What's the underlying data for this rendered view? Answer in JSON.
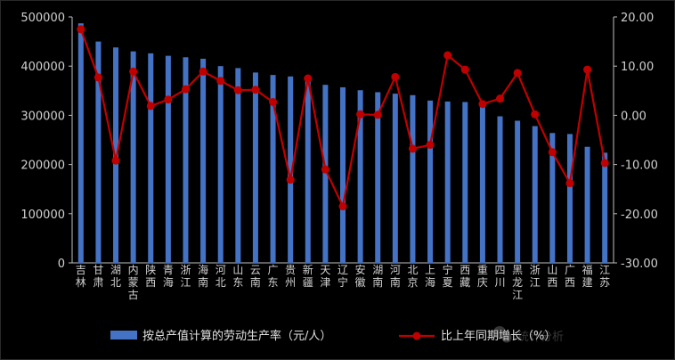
{
  "chart_data": {
    "type": "bar+line",
    "categories": [
      "吉林",
      "甘肃",
      "湖北",
      "内蒙古",
      "陕西",
      "青海",
      "浙江",
      "海南",
      "河北",
      "山东",
      "云南",
      "广东",
      "贵州",
      "新疆",
      "天津",
      "辽宁",
      "安徽",
      "湖南",
      "河南",
      "北京",
      "上海",
      "宁夏",
      "西藏",
      "重庆",
      "四川",
      "黑龙江",
      "浙江",
      "山西",
      "广西",
      "福建",
      "江苏"
    ],
    "series": [
      {
        "name": "按总产值计算的劳动生产率（元/人）",
        "type": "bar",
        "axis": "left",
        "color": "#4472c4",
        "values": [
          487000,
          450000,
          438000,
          430000,
          426000,
          421000,
          418000,
          415000,
          400000,
          396000,
          387000,
          382000,
          379000,
          378000,
          362000,
          357000,
          351000,
          347000,
          344000,
          341000,
          330000,
          328000,
          327000,
          323000,
          298000,
          289000,
          278000,
          264000,
          262000,
          236000,
          224000
        ]
      },
      {
        "name": "比上年同期增长（%）",
        "type": "line",
        "axis": "right",
        "color": "#c00000",
        "values": [
          17.5,
          7.7,
          -9.2,
          8.9,
          1.9,
          3.2,
          5.3,
          8.9,
          7.0,
          5.1,
          5.2,
          2.7,
          -13.1,
          7.5,
          -11.0,
          -18.5,
          0.2,
          0.1,
          7.8,
          -6.8,
          -6.0,
          12.2,
          9.3,
          2.3,
          3.4,
          8.6,
          0.2,
          -7.5,
          -13.8,
          9.3,
          -9.7
        ]
      }
    ],
    "left_axis": {
      "ylim": [
        0,
        500000
      ],
      "ticks": [
        "0",
        "100000",
        "200000",
        "300000",
        "400000",
        "500000"
      ]
    },
    "right_axis": {
      "ylim": [
        -30,
        20
      ],
      "ticks": [
        "-30.00",
        "-20.00",
        "-10.00",
        "0.00",
        "10.00",
        "20.00"
      ]
    },
    "grid": false,
    "legend": "bottom"
  },
  "watermark": "统计分析"
}
